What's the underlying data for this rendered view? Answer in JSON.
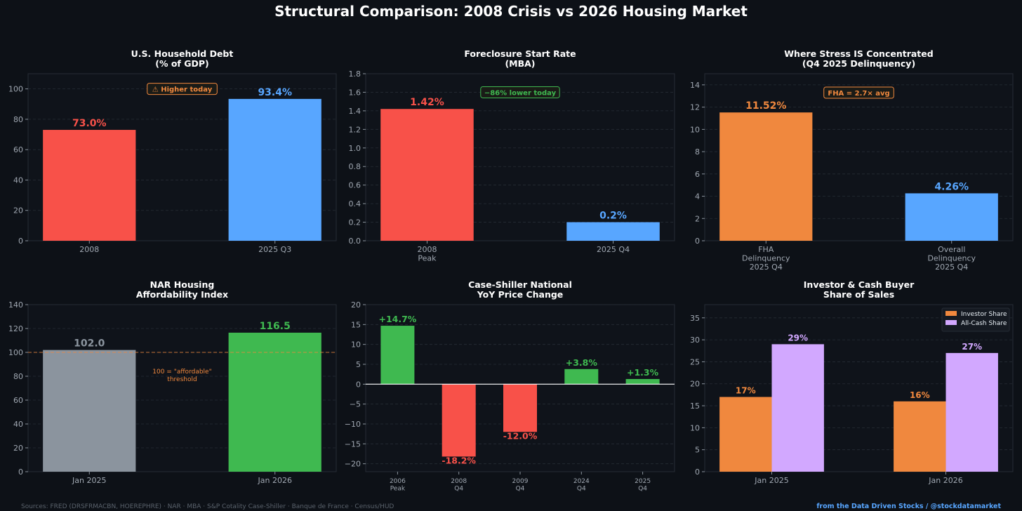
{
  "title": "Structural Comparison: 2008 Crisis vs 2026 Housing Market",
  "footer": {
    "sources": "Sources: FRED (DRSFRMACBN, HOEREPHRE) · NAR · MBA · S&P Cotality Case-Shiller · Banque de France · Census/HUD",
    "credit": "from the Data Driven Stocks / @stockdatamarket"
  },
  "colors": {
    "background": "#0d1117",
    "red": "#f85149",
    "blue": "#58a6ff",
    "orange": "#f0883e",
    "gray": "#8b949e",
    "green": "#3fb950",
    "purple": "#d2a8ff",
    "grid": "#30363d",
    "text": "#ffffff",
    "tick": "#a0a8b2"
  },
  "chart_data": [
    {
      "type": "bar",
      "title": "U.S. Household Debt\n(% of GDP)",
      "categories": [
        "2008",
        "2025 Q3"
      ],
      "values": [
        73.0,
        93.4
      ],
      "labels": [
        "73.0%",
        "93.4%"
      ],
      "bar_colors": [
        "red",
        "blue"
      ],
      "ylim": [
        0,
        110
      ],
      "yticks": [
        0,
        20,
        40,
        60,
        80,
        100
      ],
      "annotation": {
        "text": "⚠ Higher today",
        "color": "orange",
        "at": [
          0.5,
          100
        ]
      },
      "grid": true
    },
    {
      "type": "bar",
      "title": "Foreclosure Start Rate\n(MBA)",
      "categories": [
        "2008\nPeak",
        "2025 Q4"
      ],
      "values": [
        1.42,
        0.2
      ],
      "labels": [
        "1.42%",
        "0.2%"
      ],
      "bar_colors": [
        "red",
        "blue"
      ],
      "ylim": [
        0,
        1.8
      ],
      "yticks": [
        0.0,
        0.2,
        0.4,
        0.6,
        0.8,
        1.0,
        1.2,
        1.4,
        1.6,
        1.8
      ],
      "tick_decimals": 1,
      "annotation": {
        "text": "−86% lower today",
        "color": "green",
        "at": [
          0.5,
          1.6
        ]
      },
      "grid": true
    },
    {
      "type": "bar",
      "title": "Where Stress IS Concentrated\n(Q4 2025 Delinquency)",
      "categories": [
        "FHA\nDelinquency\n2025 Q4",
        "Overall\nDelinquency\n2025 Q4"
      ],
      "values": [
        11.52,
        4.26
      ],
      "labels": [
        "11.52%",
        "4.26%"
      ],
      "bar_colors": [
        "orange",
        "blue"
      ],
      "ylim": [
        0,
        15
      ],
      "yticks": [
        0,
        2,
        4,
        6,
        8,
        10,
        12,
        14
      ],
      "annotation": {
        "text": "FHA = 2.7× avg",
        "color": "orange",
        "at": [
          0.5,
          13.3
        ]
      },
      "grid": true
    },
    {
      "type": "bar",
      "title": "NAR Housing\nAffordability Index",
      "categories": [
        "Jan 2025",
        "Jan 2026"
      ],
      "values": [
        102.0,
        116.5
      ],
      "labels": [
        "102.0",
        "116.5"
      ],
      "bar_colors": [
        "gray",
        "green"
      ],
      "ylim": [
        0,
        140
      ],
      "yticks": [
        0,
        20,
        40,
        60,
        80,
        100,
        120,
        140
      ],
      "reference_line": {
        "value": 100,
        "color": "orange",
        "text": "100 = \"affordable\"\nthreshold"
      },
      "grid": true
    },
    {
      "type": "bar",
      "title": "Case-Shiller National\nYoY Price Change",
      "categories": [
        "2006\nPeak",
        "2008\nQ4",
        "2009\nQ4",
        "2024\nQ4",
        "2025\nQ4"
      ],
      "values": [
        14.7,
        -18.2,
        -12.0,
        3.8,
        1.3
      ],
      "labels": [
        "+14.7%",
        "-18.2%",
        "-12.0%",
        "+3.8%",
        "+1.3%"
      ],
      "bar_colors": [
        "green",
        "red",
        "red",
        "green",
        "green"
      ],
      "ylim": [
        -22,
        20
      ],
      "yticks": [
        -20,
        -15,
        -10,
        -5,
        0,
        5,
        10,
        15,
        20
      ],
      "grid": true
    },
    {
      "type": "bar",
      "title": "Investor & Cash Buyer\nShare of Sales",
      "categories": [
        "Jan 2025",
        "Jan 2026"
      ],
      "series": [
        {
          "name": "Investor Share",
          "values": [
            17,
            16
          ],
          "labels": [
            "17%",
            "16%"
          ],
          "color": "orange"
        },
        {
          "name": "All-Cash Share",
          "values": [
            29,
            27
          ],
          "labels": [
            "29%",
            "27%"
          ],
          "color": "purple"
        }
      ],
      "ylim": [
        0,
        38
      ],
      "yticks": [
        0,
        5,
        10,
        15,
        20,
        25,
        30,
        35
      ],
      "legend": "top-right",
      "grid": true
    }
  ]
}
